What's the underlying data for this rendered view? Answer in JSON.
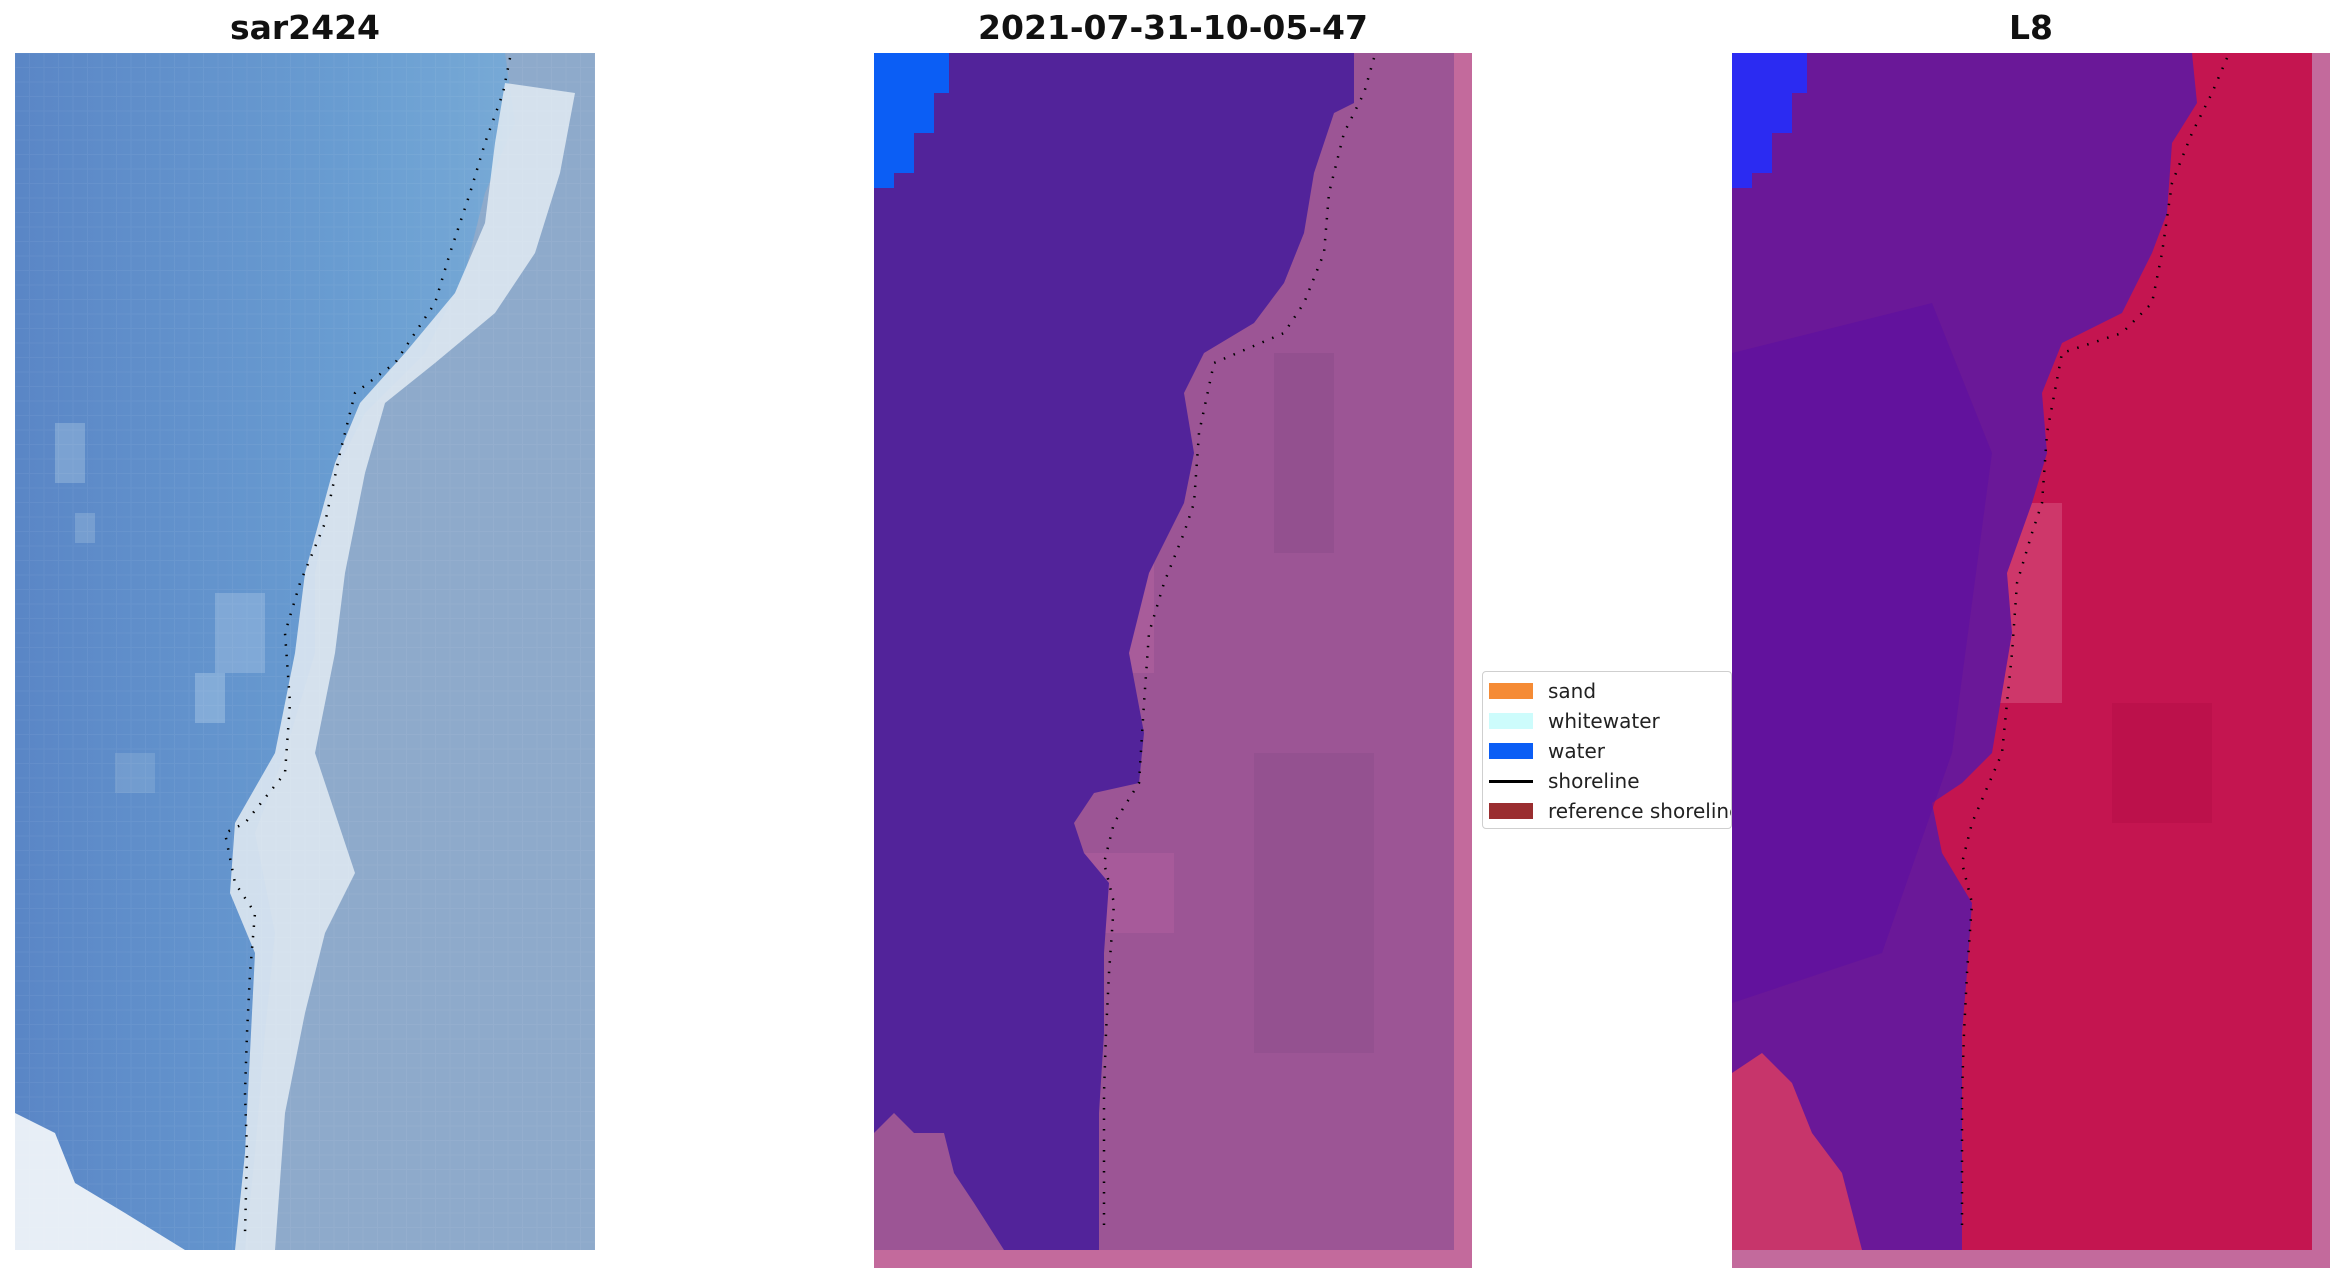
{
  "figure": {
    "panels": [
      {
        "title": "sar2424",
        "kind": "rgb-image"
      },
      {
        "title": "2021-07-31-10-05-47",
        "kind": "classified-image"
      },
      {
        "title": "L8",
        "kind": "mndwi-image"
      }
    ]
  },
  "legend": {
    "placement": "center",
    "items": [
      {
        "label": "sand",
        "color": "#f58b35",
        "type": "patch"
      },
      {
        "label": "whitewater",
        "color": "#cdfcfc",
        "type": "patch"
      },
      {
        "label": "water",
        "color": "#0b5ef5",
        "type": "patch"
      },
      {
        "label": "shoreline",
        "color": "#000000",
        "type": "line"
      },
      {
        "label": "reference shoreline",
        "color": "#9a2e30",
        "type": "patch"
      }
    ]
  },
  "colors": {
    "rgb_sea": "#5b8fc8",
    "rgb_surf": "#e6eef6",
    "rgb_land": "#8da9c8",
    "class_water_dark": "#52239a",
    "class_water": "#0b5ef5",
    "class_land": "#9e5496",
    "class_border": "#c36a9c",
    "mndwi_water": "#6a1898",
    "mndwi_land": "#c4174e",
    "mndwi_blue": "#2b2bf2",
    "mndwi_border": "#c36a9c"
  }
}
